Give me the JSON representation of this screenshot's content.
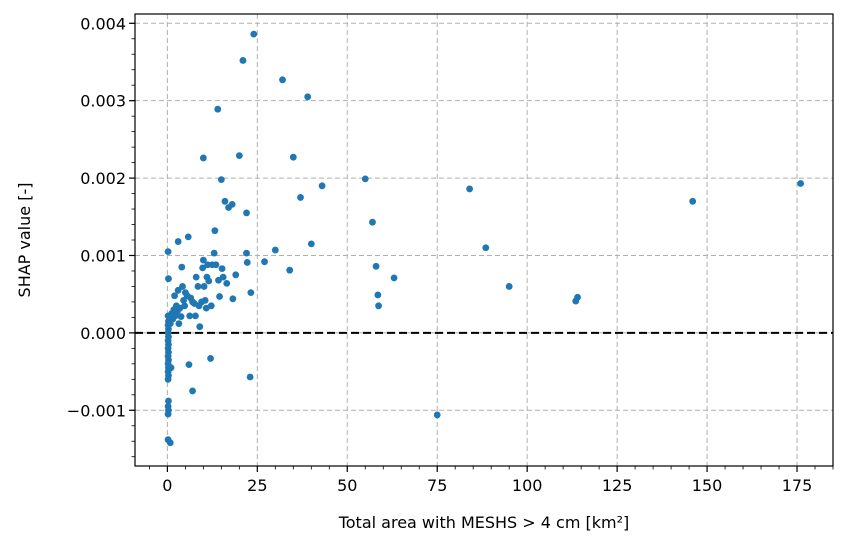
{
  "chart_data": {
    "type": "scatter",
    "title": "",
    "xlabel": "Total area with MESHS > 4 cm [km²]",
    "ylabel": "SHAP value [-]",
    "xlim": [
      -9,
      185
    ],
    "ylim": [
      -0.00172,
      0.00412
    ],
    "x_ticks": [
      0,
      25,
      50,
      75,
      100,
      125,
      150,
      175
    ],
    "x_tick_labels": [
      "0",
      "25",
      "50",
      "75",
      "100",
      "125",
      "150",
      "175"
    ],
    "y_ticks": [
      -0.001,
      0.0,
      0.001,
      0.002,
      0.003,
      0.004
    ],
    "y_tick_labels": [
      "−0.001",
      "0.000",
      "0.001",
      "0.002",
      "0.003",
      "0.004"
    ],
    "x_minor_step": 5,
    "y_minor_step": 0.0002,
    "grid": true,
    "reference_line_y": 0,
    "marker_color": "#1f77b4",
    "series": [
      {
        "points": [
          [
            0.2,
            0.00105
          ],
          [
            0.3,
            0.0007
          ],
          [
            0.2,
            0.00022
          ],
          [
            0.3,
            0.00015
          ],
          [
            0.2,
            0.0001
          ],
          [
            0.3,
            5e-05
          ],
          [
            0.2,
            0.0
          ],
          [
            0.3,
            -5e-05
          ],
          [
            0.2,
            -0.0001
          ],
          [
            0.3,
            -0.00015
          ],
          [
            0.2,
            -0.0002
          ],
          [
            0.3,
            -0.00025
          ],
          [
            0.2,
            -0.0003
          ],
          [
            0.3,
            -0.00035
          ],
          [
            0.2,
            -0.0004
          ],
          [
            0.3,
            -0.00045
          ],
          [
            0.2,
            -0.0005
          ],
          [
            0.3,
            -0.00055
          ],
          [
            0.2,
            -0.0006
          ],
          [
            0.3,
            -0.00088
          ],
          [
            0.2,
            -0.00095
          ],
          [
            0.3,
            -0.001
          ],
          [
            0.2,
            -0.00105
          ],
          [
            0.2,
            -0.00138
          ],
          [
            0.8,
            -0.00142
          ],
          [
            0.8,
            0.00012
          ],
          [
            1.0,
            -0.00045
          ],
          [
            1.2,
            0.00025
          ],
          [
            1.5,
            0.00018
          ],
          [
            1.8,
            0.0003
          ],
          [
            2.0,
            0.00048
          ],
          [
            2.2,
            0.00022
          ],
          [
            2.5,
            0.00035
          ],
          [
            2.8,
            0.00028
          ],
          [
            3.0,
            0.00118
          ],
          [
            3.0,
            0.00055
          ],
          [
            3.2,
            0.00012
          ],
          [
            3.5,
            0.00032
          ],
          [
            3.8,
            0.00021
          ],
          [
            4.0,
            0.00085
          ],
          [
            4.2,
            0.0006
          ],
          [
            4.5,
            0.00042
          ],
          [
            4.8,
            0.00035
          ],
          [
            5.0,
            0.00052
          ],
          [
            5.5,
            0.00048
          ],
          [
            5.8,
            0.00124
          ],
          [
            6.0,
            -0.00041
          ],
          [
            6.2,
            0.00022
          ],
          [
            6.5,
            0.00045
          ],
          [
            7.0,
            -0.00075
          ],
          [
            7.0,
            0.0004
          ],
          [
            7.5,
            0.00038
          ],
          [
            7.8,
            0.00022
          ],
          [
            8.0,
            0.00072
          ],
          [
            8.5,
            0.0006
          ],
          [
            8.8,
            0.00035
          ],
          [
            9.0,
            8e-05
          ],
          [
            9.5,
            0.0004
          ],
          [
            9.8,
            0.00084
          ],
          [
            10.0,
            0.00226
          ],
          [
            10.0,
            0.00094
          ],
          [
            10.2,
            0.0006
          ],
          [
            10.5,
            0.00042
          ],
          [
            10.8,
            0.00032
          ],
          [
            11.0,
            0.00072
          ],
          [
            11.2,
            0.00088
          ],
          [
            11.5,
            0.00067
          ],
          [
            12.0,
            -0.00033
          ],
          [
            12.2,
            0.00035
          ],
          [
            12.5,
            0.00088
          ],
          [
            13.0,
            0.00103
          ],
          [
            13.2,
            0.00132
          ],
          [
            13.5,
            0.00088
          ],
          [
            14.0,
            0.00289
          ],
          [
            14.2,
            0.00068
          ],
          [
            14.5,
            0.00047
          ],
          [
            15.0,
            0.00198
          ],
          [
            15.2,
            0.00083
          ],
          [
            15.5,
            0.00072
          ],
          [
            16.0,
            0.0017
          ],
          [
            16.5,
            0.00064
          ],
          [
            17.0,
            0.00162
          ],
          [
            18.0,
            0.00166
          ],
          [
            18.2,
            0.00044
          ],
          [
            19.0,
            0.00075
          ],
          [
            20.0,
            0.00229
          ],
          [
            21.0,
            0.00352
          ],
          [
            22.0,
            0.00155
          ],
          [
            22.0,
            0.00103
          ],
          [
            22.2,
            0.00091
          ],
          [
            23.0,
            -0.00057
          ],
          [
            23.2,
            0.00052
          ],
          [
            24.0,
            0.00386
          ],
          [
            27.0,
            0.00092
          ],
          [
            30.0,
            0.00107
          ],
          [
            32.0,
            0.00327
          ],
          [
            34.0,
            0.00081
          ],
          [
            35.0,
            0.00227
          ],
          [
            37.0,
            0.00175
          ],
          [
            39.0,
            0.00305
          ],
          [
            40.0,
            0.00115
          ],
          [
            43.0,
            0.0019
          ],
          [
            55.0,
            0.00199
          ],
          [
            57.0,
            0.00143
          ],
          [
            58.0,
            0.00086
          ],
          [
            58.5,
            0.00049
          ],
          [
            58.7,
            0.00035
          ],
          [
            63.0,
            0.00071
          ],
          [
            75.0,
            -0.00106
          ],
          [
            84.0,
            0.00186
          ],
          [
            88.5,
            0.0011
          ],
          [
            95.0,
            0.0006
          ],
          [
            113.5,
            0.00041
          ],
          [
            114.0,
            0.00046
          ],
          [
            146.0,
            0.0017
          ],
          [
            176.0,
            0.00193
          ]
        ]
      }
    ]
  }
}
